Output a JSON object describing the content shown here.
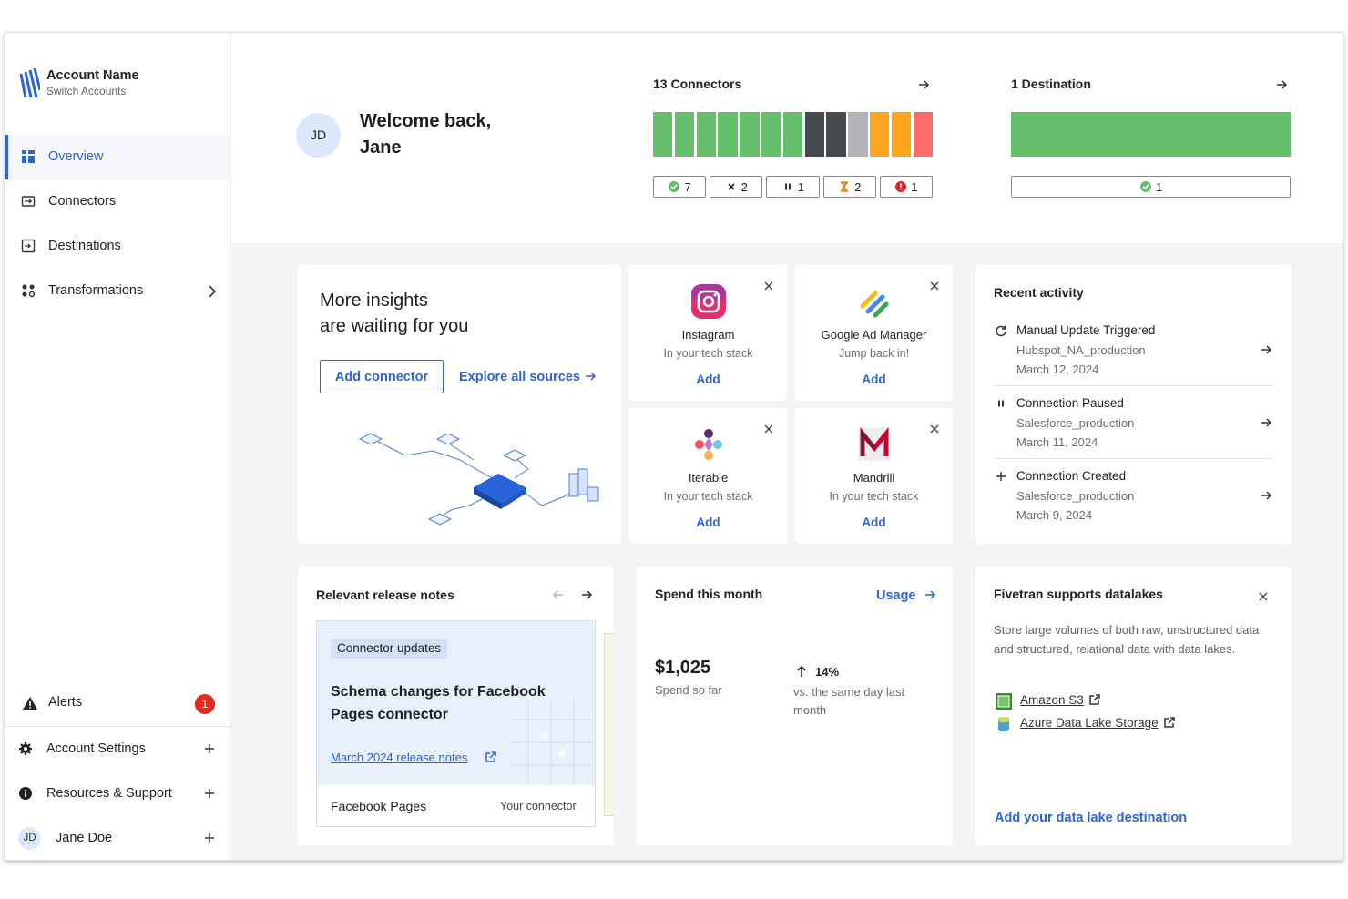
{
  "sidebar": {
    "account_name": "Account Name",
    "switch_accounts": "Switch Accounts",
    "nav": [
      {
        "label": "Overview",
        "active": true
      },
      {
        "label": "Connectors",
        "active": false
      },
      {
        "label": "Destinations",
        "active": false
      },
      {
        "label": "Transformations",
        "active": false
      }
    ],
    "alerts": {
      "label": "Alerts",
      "count": 1
    },
    "menu": [
      "Account Settings",
      "Resources & Support"
    ],
    "user": {
      "initials": "JD",
      "name": "Jane Doe"
    }
  },
  "header": {
    "avatar": "JD",
    "greeting": "Welcome back,",
    "name": "Jane",
    "connectors": {
      "title": "13 Connectors",
      "statuses": [
        {
          "icon": "check",
          "count": 7,
          "color": "#66bf6b"
        },
        {
          "icon": "x",
          "count": 2,
          "color": "#464b50"
        },
        {
          "icon": "pause",
          "count": 1,
          "color": "#b3b5b8"
        },
        {
          "icon": "hourglass",
          "count": 2,
          "color": "#ffa41f"
        },
        {
          "icon": "error",
          "count": 1,
          "color": "#ff6b6b"
        }
      ]
    },
    "destinations": {
      "title": "1 Destination",
      "statuses": [
        {
          "icon": "check",
          "count": 1,
          "color": "#66bf6b"
        }
      ]
    }
  },
  "insights": {
    "title_lines": [
      "More insights",
      "are waiting for you"
    ],
    "add_connector": "Add connector",
    "explore": "Explore all sources"
  },
  "tech_cards": [
    {
      "name": "Instagram",
      "note": "In your tech stack",
      "action": "Add"
    },
    {
      "name": "Google Ad Manager",
      "note": "Jump back in!",
      "action": "Add"
    },
    {
      "name": "Iterable",
      "note": "In your tech stack",
      "action": "Add"
    },
    {
      "name": "Mandrill",
      "note": "In your tech stack",
      "action": "Add"
    }
  ],
  "recent_activity": {
    "title": "Recent activity",
    "items": [
      {
        "icon": "refresh",
        "event": "Manual Update Triggered",
        "connector": "Hubspot_NA_production",
        "date": "March 12, 2024"
      },
      {
        "icon": "pause",
        "event": "Connection Paused",
        "connector": "Salesforce_production",
        "date": "March 11, 2024"
      },
      {
        "icon": "plus",
        "event": "Connection Created",
        "connector": "Salesforce_production",
        "date": "March 9, 2024"
      }
    ]
  },
  "release_notes": {
    "title": "Relevant release notes",
    "tag": "Connector updates",
    "headline": "Schema changes for Facebook Pages connector",
    "link": "March 2024 release notes",
    "connector": "Facebook Pages",
    "connector_note": "Your connector"
  },
  "spend": {
    "title": "Spend this month",
    "usage": "Usage",
    "amount": "$1,025",
    "amount_label": "Spend so far",
    "change": "14%",
    "change_label": "vs. the same day last month"
  },
  "datalakes": {
    "title": "Fivetran supports datalakes",
    "description": "Store large volumes of both raw, unstructured data and structured, relational data with data lakes.",
    "links": [
      "Amazon S3",
      "Azure Data Lake Storage"
    ],
    "cta": "Add your data lake destination"
  }
}
